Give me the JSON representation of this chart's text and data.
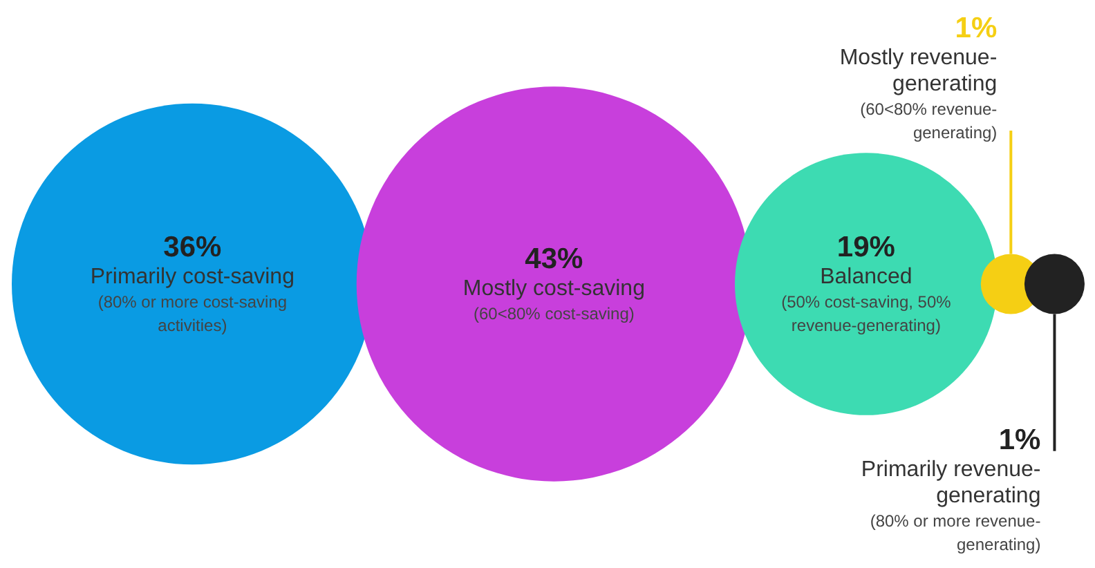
{
  "chart_data": {
    "type": "other",
    "categories": [
      "Primarily cost-saving",
      "Mostly cost-saving",
      "Balanced",
      "Mostly revenue-generating",
      "Primarily revenue-generating"
    ],
    "values": [
      36,
      43,
      19,
      1,
      1
    ],
    "value_labels": [
      "36%",
      "43%",
      "19%",
      "1%",
      "1%"
    ],
    "colors": [
      "#0a9be3",
      "#c83fdc",
      "#3ddbb2",
      "#f5cf14",
      "#222222"
    ],
    "annotations": [
      "(80% or more cost-saving activities)",
      "(60<80% cost-saving)",
      "(50% cost-saving, 50% revenue-generating)",
      "(60<80% revenue-generating)",
      "(80% or more revenue-generating)"
    ]
  }
}
